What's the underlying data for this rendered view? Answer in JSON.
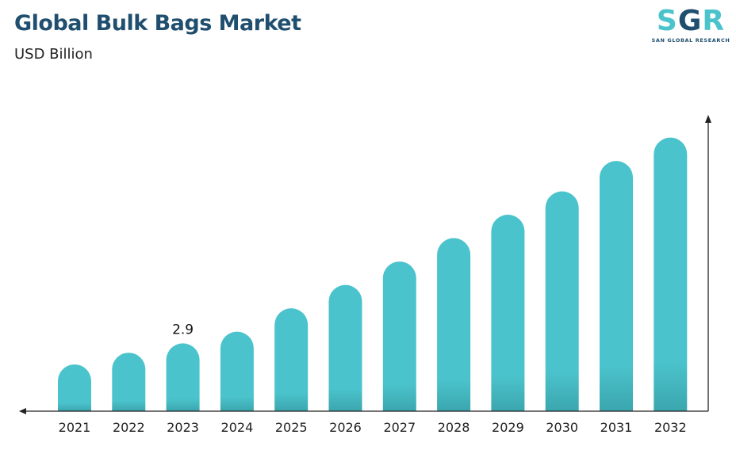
{
  "header": {
    "title": "Global Bulk Bags Market",
    "subtitle": "USD Billion"
  },
  "logo": {
    "mark_left": "S",
    "mark_mid": "G",
    "mark_right": "R",
    "tagline": "SAN GLOBAL RESEARCH"
  },
  "colors": {
    "bar": "#4bc3cc",
    "bar_base": "#3ba6ae",
    "title": "#1f4e6e",
    "axis": "#222222"
  },
  "chart_data": {
    "type": "bar",
    "categories": [
      "2021",
      "2022",
      "2023",
      "2024",
      "2025",
      "2026",
      "2027",
      "2028",
      "2029",
      "2030",
      "2031",
      "2032"
    ],
    "values": [
      2.0,
      2.5,
      2.9,
      3.4,
      4.4,
      5.4,
      6.4,
      7.4,
      8.4,
      9.4,
      10.7,
      11.7
    ],
    "data_labels": [
      {
        "category": "2023",
        "text": "2.9"
      }
    ],
    "title": "Global Bulk Bags Market",
    "ylabel": "USD Billion",
    "ylim": [
      0,
      12.5
    ],
    "grid": false,
    "legend": "none"
  }
}
